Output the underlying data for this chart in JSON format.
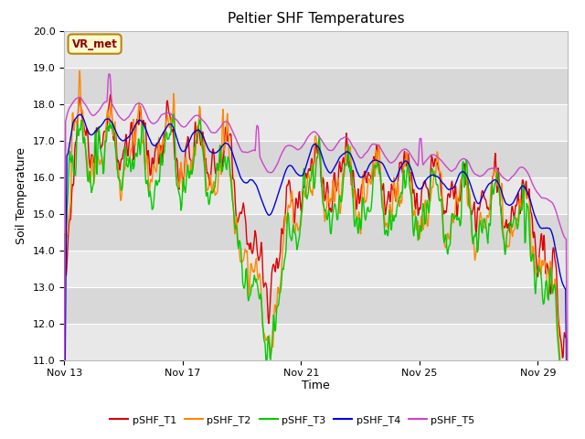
{
  "title": "Peltier SHF Temperatures",
  "ylabel": "Soil Temperature",
  "xlabel": "Time",
  "ylim": [
    11.0,
    20.0
  ],
  "yticks": [
    11.0,
    12.0,
    13.0,
    14.0,
    15.0,
    16.0,
    17.0,
    18.0,
    19.0,
    20.0
  ],
  "annotation": "VR_met",
  "series_colors": [
    "#dd0000",
    "#ff8800",
    "#00cc00",
    "#0000dd",
    "#cc44cc"
  ],
  "series_labels": [
    "pSHF_T1",
    "pSHF_T2",
    "pSHF_T3",
    "pSHF_T4",
    "pSHF_T5"
  ],
  "line_width": 1.0,
  "fig_bg": "#ffffff",
  "plot_bg": "#e8e8e8",
  "band_colors": [
    "#e8e8e8",
    "#d8d8d8"
  ],
  "x_tick_days": [
    0,
    4,
    8,
    12,
    16
  ],
  "x_tick_labels": [
    "Nov 13",
    "Nov 17",
    "Nov 21",
    "Nov 25",
    "Nov 29"
  ],
  "title_fontsize": 11,
  "axis_label_fontsize": 9,
  "tick_fontsize": 8
}
